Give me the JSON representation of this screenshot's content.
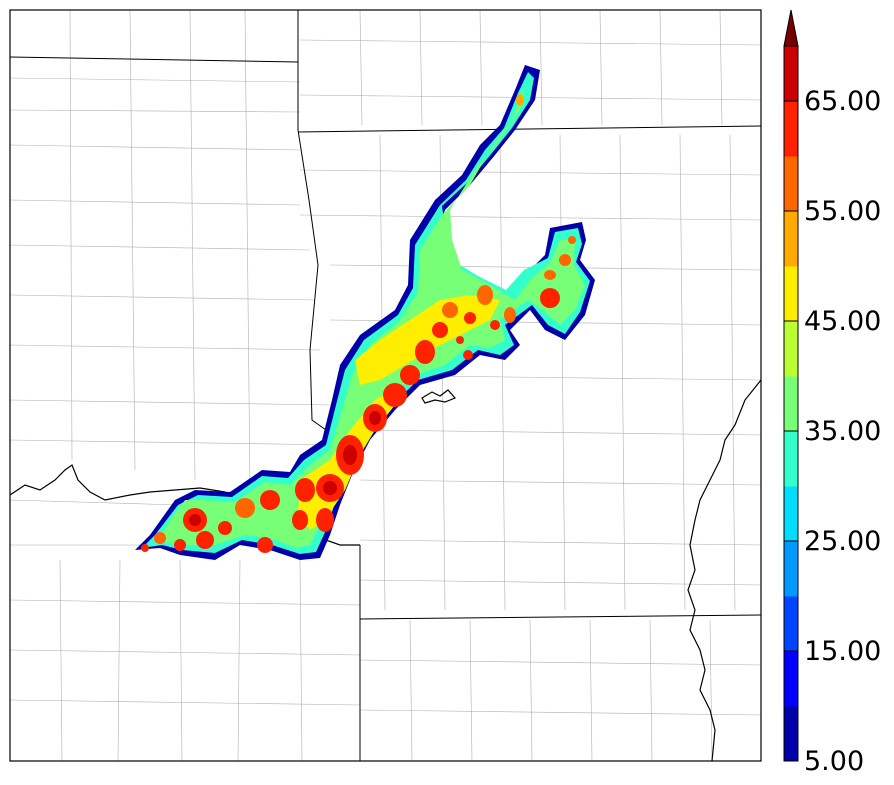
{
  "colorbar": {
    "labels": [
      "5.00",
      "15.00",
      "25.00",
      "35.00",
      "45.00",
      "55.00",
      "65.00"
    ],
    "levels": [
      5,
      10,
      15,
      20,
      25,
      30,
      35,
      40,
      45,
      50,
      55,
      60,
      65,
      70
    ],
    "colors": [
      "#0000aa",
      "#0000ff",
      "#0044ff",
      "#0099ff",
      "#00ddff",
      "#33ffcc",
      "#77ff77",
      "#bbff33",
      "#ffee00",
      "#ffaa00",
      "#ff6600",
      "#ff2200",
      "#cc0000"
    ],
    "extend_color": "#770000",
    "extend": "max"
  },
  "colors": {
    "background": "#ffffff",
    "state_border": "#000000",
    "county_border": "#aaaaaa",
    "river": "#000000"
  }
}
